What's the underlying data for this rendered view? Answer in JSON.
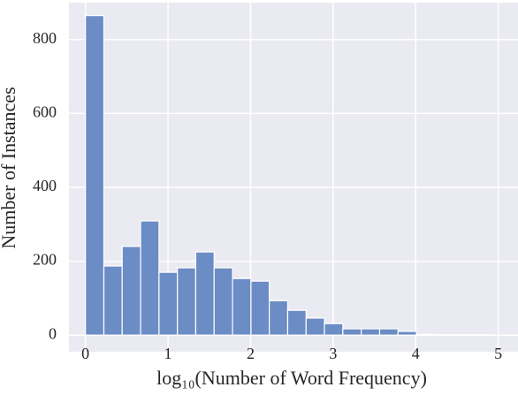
{
  "chart_data": {
    "type": "histogram",
    "xlabel": "log₁₀(Number of Word Frequency)",
    "ylabel": "Number of Instances",
    "bins": [
      0,
      0.223,
      0.445,
      0.668,
      0.891,
      1.114,
      1.336,
      1.559,
      1.782,
      2.005,
      2.227,
      2.45,
      2.673,
      2.895,
      3.118,
      3.341,
      3.564,
      3.786,
      4.009,
      4.232,
      4.455,
      4.677,
      4.9
    ],
    "values": [
      865,
      187,
      240,
      309,
      170,
      182,
      225,
      182,
      153,
      146,
      93,
      67,
      46,
      31,
      17,
      17,
      17,
      10,
      2,
      1,
      1,
      1
    ],
    "color": "#6b8cc5",
    "xlim": [
      -0.2,
      5.24
    ],
    "xticks": [
      0,
      1,
      2,
      3,
      4,
      5
    ],
    "ylim": [
      -45,
      900
    ],
    "yticks": [
      0,
      200,
      400,
      600,
      800
    ],
    "grid": true
  }
}
